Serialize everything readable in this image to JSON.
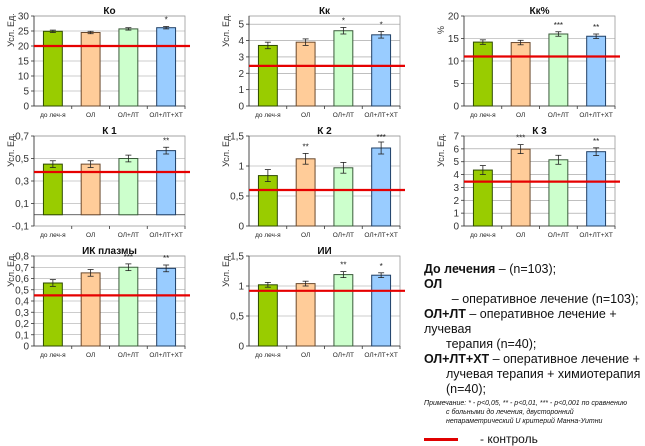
{
  "colors": {
    "bars": [
      "#99cc00",
      "#ffcc99",
      "#ccffcc",
      "#99ccff"
    ],
    "bar_borders": [
      "#2e4a00",
      "#6b4a2e",
      "#3b5b3b",
      "#1f3f66"
    ],
    "control_line": "#e60000"
  },
  "chart_data": [
    {
      "type": "bar",
      "title": "Ко",
      "ylabel": "Усл. Ед.",
      "categories": [
        "до леч-я",
        "ОЛ",
        "ОЛ+ЛТ",
        "ОЛ+ЛТ+ХТ"
      ],
      "values": [
        24.9,
        24.5,
        25.7,
        26.1
      ],
      "errors": [
        0.4,
        0.4,
        0.4,
        0.4
      ],
      "significance": [
        "",
        "",
        "",
        "*"
      ],
      "control": 20,
      "ylim": [
        0,
        30
      ],
      "yticks": [
        0,
        5,
        10,
        15,
        20,
        25,
        30
      ],
      "ytick_labels": [
        "0",
        "5",
        "10",
        "15",
        "20",
        "25",
        "30"
      ],
      "grid": true
    },
    {
      "type": "bar",
      "title": "Кк",
      "ylabel": "Усл. Ед.",
      "categories": [
        "до леч-я",
        "ОЛ",
        "ОЛ+ЛТ",
        "ОЛ+ЛТ+ХТ"
      ],
      "values": [
        3.7,
        3.9,
        4.6,
        4.35
      ],
      "errors": [
        0.2,
        0.2,
        0.2,
        0.2
      ],
      "significance": [
        "",
        "",
        "*",
        "*"
      ],
      "control": 2.45,
      "ylim": [
        0,
        5.5
      ],
      "yticks": [
        0,
        1,
        2,
        3,
        4,
        5
      ],
      "ytick_labels": [
        "0",
        "1",
        "2",
        "3",
        "4",
        "5"
      ],
      "grid": true
    },
    {
      "type": "bar",
      "title": "Кк%",
      "ylabel": "%",
      "categories": [
        "до леч-я",
        "ОЛ",
        "ОЛ+ЛТ",
        "ОЛ+ЛТ+ХТ"
      ],
      "values": [
        14.2,
        14.1,
        16.0,
        15.5
      ],
      "errors": [
        0.5,
        0.5,
        0.5,
        0.5
      ],
      "significance": [
        "",
        "",
        "***",
        "**"
      ],
      "control": 11,
      "ylim": [
        0,
        20
      ],
      "yticks": [
        0,
        5,
        10,
        15,
        20
      ],
      "ytick_labels": [
        "0",
        "5",
        "10",
        "15",
        "20"
      ],
      "grid": true
    },
    {
      "type": "bar",
      "title": "К 1",
      "ylabel": "Усл. Ед.",
      "categories": [
        "до леч-я",
        "ОЛ",
        "ОЛ+ЛТ",
        "ОЛ+ЛТ+ХТ"
      ],
      "values": [
        0.45,
        0.45,
        0.5,
        0.57
      ],
      "errors": [
        0.03,
        0.03,
        0.03,
        0.03
      ],
      "significance": [
        "",
        "",
        "",
        "**"
      ],
      "control": 0.38,
      "ylim": [
        -0.1,
        0.7
      ],
      "yticks": [
        -0.1,
        0.1,
        0.3,
        0.5,
        0.7
      ],
      "ytick_labels": [
        "-0,1",
        "0,1",
        "0,3",
        "0,5",
        "0,7"
      ],
      "grid": true
    },
    {
      "type": "bar",
      "title": "К 2",
      "ylabel": "Усл. Ед.",
      "categories": [
        "до леч-я",
        "ОЛ",
        "ОЛ+ЛТ",
        "ОЛ+ЛТ+ХТ"
      ],
      "values": [
        0.84,
        1.12,
        0.97,
        1.3
      ],
      "errors": [
        0.1,
        0.09,
        0.09,
        0.1
      ],
      "significance": [
        "",
        "**",
        "",
        "***"
      ],
      "control": 0.6,
      "ylim": [
        0,
        1.5
      ],
      "yticks": [
        0,
        0.5,
        1,
        1.5
      ],
      "ytick_labels": [
        "0",
        "0,5",
        "1",
        "1,5"
      ],
      "grid": true
    },
    {
      "type": "bar",
      "title": "К 3",
      "ylabel": "Усл. Ед.",
      "categories": [
        "до леч-я",
        "ОЛ",
        "ОЛ+ЛТ",
        "ОЛ+ЛТ+ХТ"
      ],
      "values": [
        4.35,
        5.98,
        5.15,
        5.78
      ],
      "errors": [
        0.35,
        0.35,
        0.35,
        0.3
      ],
      "significance": [
        "",
        "***",
        "",
        "**"
      ],
      "control": 3.45,
      "ylim": [
        0,
        7
      ],
      "yticks": [
        0,
        1,
        2,
        3,
        4,
        5,
        6,
        7
      ],
      "ytick_labels": [
        "0",
        "1",
        "2",
        "3",
        "4",
        "5",
        "6",
        "7"
      ],
      "grid": true
    },
    {
      "type": "bar",
      "title": "ИК плазмы",
      "ylabel": "Усл. Ед.",
      "categories": [
        "до леч-я",
        "ОЛ",
        "ОЛ+ЛТ",
        "ОЛ+ЛТ+ХТ"
      ],
      "values": [
        0.56,
        0.65,
        0.7,
        0.69
      ],
      "errors": [
        0.03,
        0.03,
        0.03,
        0.03
      ],
      "significance": [
        "",
        "",
        "***",
        "**"
      ],
      "control": 0.45,
      "ylim": [
        0,
        0.8
      ],
      "yticks": [
        0,
        0.1,
        0.2,
        0.3,
        0.4,
        0.5,
        0.6,
        0.7,
        0.8
      ],
      "ytick_labels": [
        "0",
        "0,1",
        "0,2",
        "0,3",
        "0,4",
        "0,5",
        "0,6",
        "0,7",
        "0,8"
      ],
      "grid": true
    },
    {
      "type": "bar",
      "title": "ИИ",
      "ylabel": "Усл. Ед.",
      "categories": [
        "до леч-я",
        "ОЛ",
        "ОЛ+ЛТ",
        "ОЛ+ЛТ+ХТ"
      ],
      "values": [
        1.02,
        1.04,
        1.19,
        1.18
      ],
      "errors": [
        0.04,
        0.04,
        0.05,
        0.04
      ],
      "significance": [
        "",
        "",
        "**",
        "*"
      ],
      "control": 0.92,
      "ylim": [
        0,
        1.5
      ],
      "yticks": [
        0,
        0.5,
        1,
        1.5
      ],
      "ytick_labels": [
        "0",
        "0,5",
        "1",
        "1,5"
      ],
      "grid": true
    }
  ],
  "legend": {
    "rows": [
      {
        "key": "До лечения",
        "text": " – (n=103);"
      },
      {
        "key": "ОЛ",
        "text": "        – оперативное лечение (n=103);"
      },
      {
        "key": "ОЛ+ЛТ",
        "text": " – оперативное лечение + лучевая",
        "cont": "терапия (n=40);"
      },
      {
        "key": "ОЛ+ЛТ+ХТ",
        "text": " – оперативное лечение +",
        "cont": "лучевая терапия + химиотерапия",
        "cont2": "(n=40);"
      }
    ],
    "note_line1": "Примечание: * - p<0,05, ** - p<0,01, *** - p<0,001  по сравнению",
    "note_line2": "с больными до лечения, двусторонний",
    "note_line3": "непараметрический U критерий Манна-Уитни",
    "control_label": "- контроль"
  }
}
